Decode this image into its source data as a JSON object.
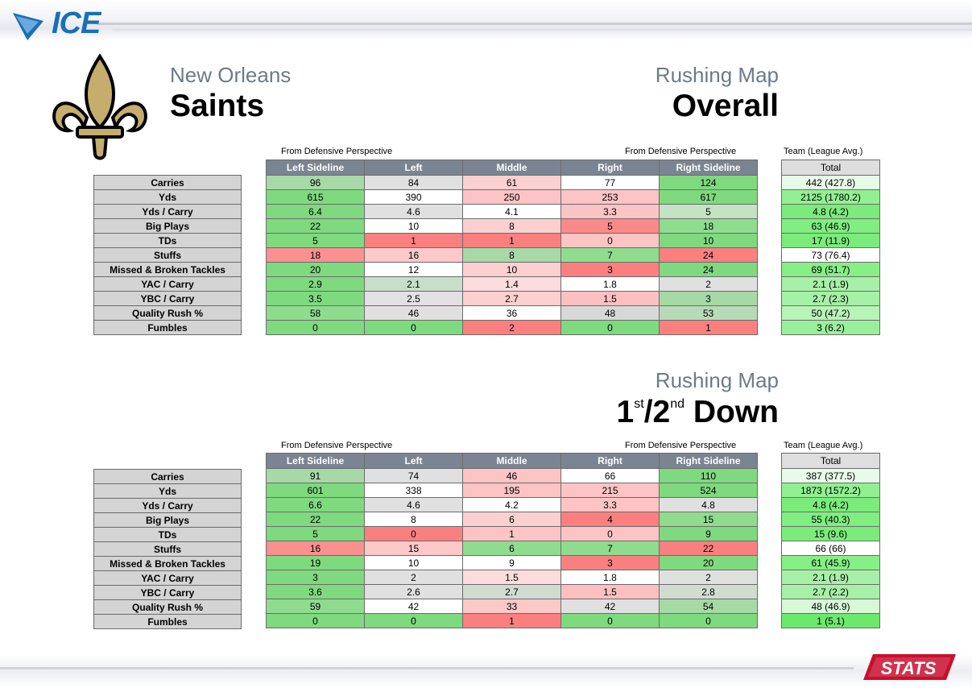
{
  "brand": {
    "logo_text": "ICE",
    "stats_logo": "STATS"
  },
  "header": {
    "city": "New Orleans",
    "team": "Saints"
  },
  "columns": [
    "Left Sideline",
    "Left",
    "Middle",
    "Right",
    "Right Sideline"
  ],
  "total_header": "Total",
  "perspective_left": "From Defensive Perspective",
  "perspective_right": "From Defensive Perspective",
  "team_label": "Team (League Avg.)",
  "row_labels": [
    "Carries",
    "Yds",
    "Yds / Carry",
    "Big Plays",
    "TDs",
    "Stuffs",
    "Missed & Broken Tackles",
    "YAC / Carry",
    "YBC / Carry",
    "Quality Rush %",
    "Fumbles"
  ],
  "overall": {
    "map_label": "Rushing Map",
    "title": "Overall",
    "rows": [
      [
        "96",
        "84",
        "61",
        "77",
        "124"
      ],
      [
        "615",
        "390",
        "250",
        "253",
        "617"
      ],
      [
        "6.4",
        "4.6",
        "4.1",
        "3.3",
        "5"
      ],
      [
        "22",
        "10",
        "8",
        "5",
        "18"
      ],
      [
        "5",
        "1",
        "1",
        "0",
        "10"
      ],
      [
        "18",
        "16",
        "8",
        "7",
        "24"
      ],
      [
        "20",
        "12",
        "10",
        "3",
        "24"
      ],
      [
        "2.9",
        "2.1",
        "1.4",
        "1.8",
        "2"
      ],
      [
        "3.5",
        "2.5",
        "2.7",
        "1.5",
        "3"
      ],
      [
        "58",
        "46",
        "36",
        "48",
        "53"
      ],
      [
        "0",
        "0",
        "2",
        "0",
        "1"
      ]
    ],
    "colors": [
      [
        "#a7d9a7",
        "#e0e0e0",
        "#fcd0d0",
        "#ffffff",
        "#7fd97f"
      ],
      [
        "#7fd97f",
        "#ffffff",
        "#fcc4c4",
        "#fcc4c4",
        "#7fd97f"
      ],
      [
        "#7fd97f",
        "#e0e0e0",
        "#ffffff",
        "#fcc4c4",
        "#c3e3c3"
      ],
      [
        "#7fd97f",
        "#ffffff",
        "#fcd0d0",
        "#fa8a8a",
        "#8fdc8f"
      ],
      [
        "#7fd97f",
        "#fa8080",
        "#fa8080",
        "#fcc4c4",
        "#7fd97f"
      ],
      [
        "#fa9090",
        "#fcc8c8",
        "#a7d9a7",
        "#8fdc8f",
        "#fa8080"
      ],
      [
        "#7fd97f",
        "#ffffff",
        "#fcd0d0",
        "#fa8080",
        "#7fd97f"
      ],
      [
        "#7fd97f",
        "#c8dec8",
        "#fcdcdc",
        "#ffffff",
        "#e0e0e0"
      ],
      [
        "#7fd97f",
        "#e5e0e5",
        "#fcd0d0",
        "#fcc0c0",
        "#a7d9a7"
      ],
      [
        "#8fdc8f",
        "#e0e0e0",
        "#ffffff",
        "#d8d8d8",
        "#b7dab7"
      ],
      [
        "#7fd97f",
        "#7fd97f",
        "#fa8080",
        "#7fd97f",
        "#fa8080"
      ]
    ],
    "totals": [
      "442 (427.8)",
      "2125 (1780.2)",
      "4.8 (4.2)",
      "63 (46.9)",
      "17 (11.9)",
      "73 (76.4)",
      "69 (51.7)",
      "2.1 (1.9)",
      "2.7 (2.3)",
      "50 (47.2)",
      "3 (6.2)"
    ],
    "total_colors": [
      "#e8fae8",
      "#92f092",
      "#7bec7b",
      "#80ee80",
      "#7bec7b",
      "#ffffff",
      "#86ef86",
      "#a7f0a7",
      "#a7f0a7",
      "#b8f3b8",
      "#9af09a"
    ]
  },
  "first_second": {
    "map_label": "Rushing Map",
    "title_num1": "1",
    "title_sup1": "st",
    "title_slash": "/2",
    "title_sup2": "nd",
    "title_rest": " Down",
    "rows": [
      [
        "91",
        "74",
        "46",
        "66",
        "110"
      ],
      [
        "601",
        "338",
        "195",
        "215",
        "524"
      ],
      [
        "6.6",
        "4.6",
        "4.2",
        "3.3",
        "4.8"
      ],
      [
        "22",
        "8",
        "6",
        "4",
        "15"
      ],
      [
        "5",
        "0",
        "1",
        "0",
        "9"
      ],
      [
        "16",
        "15",
        "6",
        "7",
        "22"
      ],
      [
        "19",
        "10",
        "9",
        "3",
        "20"
      ],
      [
        "3",
        "2",
        "1.5",
        "1.8",
        "2"
      ],
      [
        "3.6",
        "2.6",
        "2.7",
        "1.5",
        "2.8"
      ],
      [
        "59",
        "42",
        "33",
        "42",
        "54"
      ],
      [
        "0",
        "0",
        "1",
        "0",
        "0"
      ]
    ],
    "colors": [
      [
        "#a7d9a7",
        "#e0e0e0",
        "#fcc4c4",
        "#ffffff",
        "#7fd97f"
      ],
      [
        "#7fd97f",
        "#ffffff",
        "#fcc4c4",
        "#fcc4c4",
        "#7fd97f"
      ],
      [
        "#7fd97f",
        "#e0e0e0",
        "#ffffff",
        "#fcc4c4",
        "#e0e0e0"
      ],
      [
        "#7fd97f",
        "#ffffff",
        "#fcd0d0",
        "#fa8080",
        "#8fdc8f"
      ],
      [
        "#7fd97f",
        "#fa8080",
        "#fcc4c4",
        "#fcc4c4",
        "#7fd97f"
      ],
      [
        "#fa9090",
        "#fcc8c8",
        "#8fdc8f",
        "#8fdc8f",
        "#fa8080"
      ],
      [
        "#7fd97f",
        "#ffffff",
        "#ffffff",
        "#fa8080",
        "#7fd97f"
      ],
      [
        "#7fd97f",
        "#e0e0e0",
        "#fcdcdc",
        "#ffffff",
        "#e0e0e0"
      ],
      [
        "#7fd97f",
        "#e0e0e0",
        "#d0dcd0",
        "#fcc0c0",
        "#d0dcd0"
      ],
      [
        "#8fdc8f",
        "#ffffff",
        "#fcc8c8",
        "#e0e0e0",
        "#a7d9a7"
      ],
      [
        "#7fd97f",
        "#7fd97f",
        "#fa8080",
        "#7fd97f",
        "#7fd97f"
      ]
    ],
    "totals": [
      "387 (377.5)",
      "1873 (1572.2)",
      "4.8 (4.2)",
      "55 (40.3)",
      "15 (9.6)",
      "66 (66)",
      "61 (45.9)",
      "2.1 (1.9)",
      "2.7 (2.2)",
      "48 (46.9)",
      "1 (5.1)"
    ],
    "total_colors": [
      "#e8fae8",
      "#92f092",
      "#7bec7b",
      "#80ee80",
      "#7bec7b",
      "#ffffff",
      "#86ef86",
      "#a7f0a7",
      "#a7f0a7",
      "#d8f8d8",
      "#6ce86c"
    ]
  }
}
